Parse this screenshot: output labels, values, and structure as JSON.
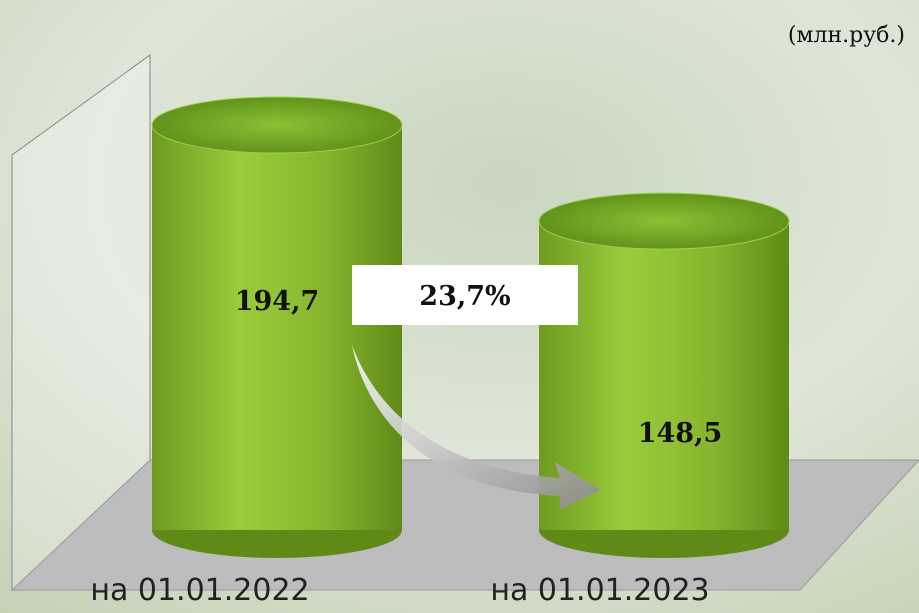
{
  "chart_data": {
    "type": "bar3d",
    "unit_label": "(млн.руб.)",
    "categories": [
      "на 01.01.2022",
      "на 01.01.2023"
    ],
    "values": [
      194.7,
      148.5
    ],
    "value_labels": [
      "194,7",
      "148,5"
    ],
    "color": "#8cbf2e",
    "annotation": "23,7%"
  }
}
